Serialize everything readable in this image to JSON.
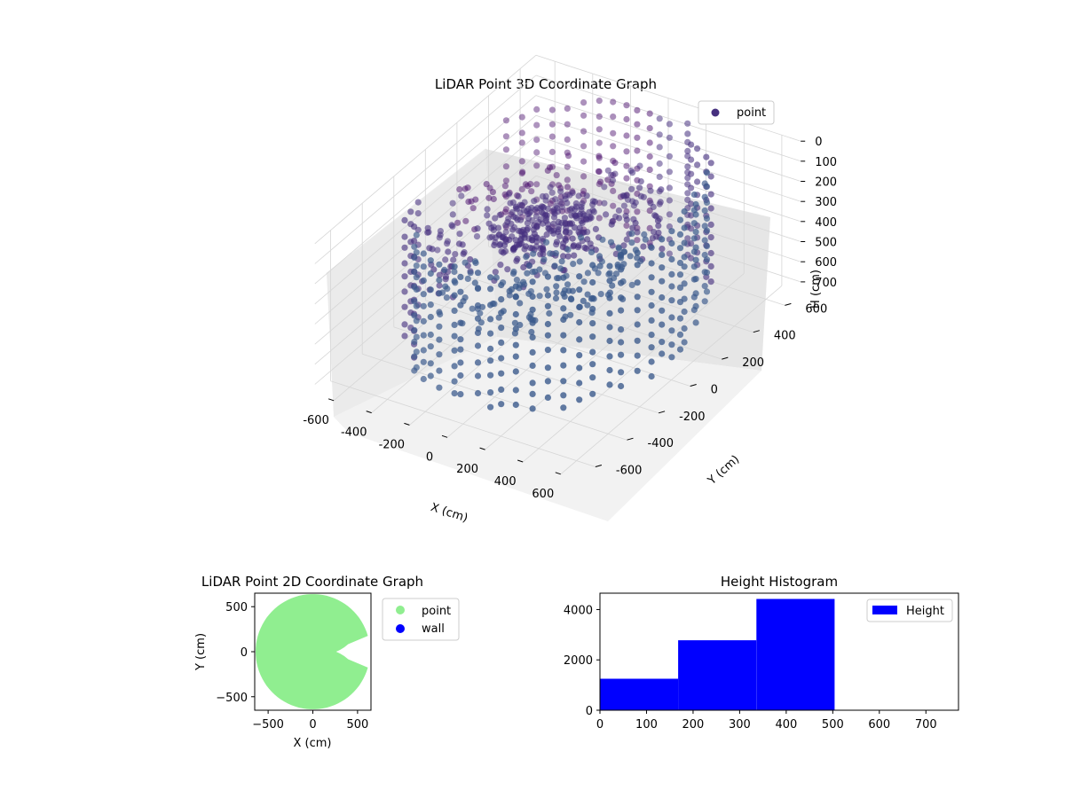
{
  "chart_data": [
    {
      "type": "scatter",
      "subtype": "scatter3d",
      "title": "LiDAR Point 3D Coordinate Graph",
      "xlabel": "X (cm)",
      "ylabel": "Y (cm)",
      "zlabel": "H (cm)",
      "xlim": [
        -700,
        700
      ],
      "ylim": [
        -700,
        700
      ],
      "zlim": [
        0,
        750
      ],
      "z_inverted": true,
      "xticks": [
        -600,
        -400,
        -200,
        0,
        200,
        400,
        600
      ],
      "yticks": [
        -600,
        -400,
        -200,
        0,
        200,
        400,
        600
      ],
      "zticks": [
        0,
        100,
        200,
        300,
        400,
        500,
        600,
        700
      ],
      "grid": true,
      "legend": {
        "position": "top-right",
        "entries": [
          "point"
        ]
      },
      "series": [
        {
          "name": "point",
          "color": "#46307f",
          "color_far": "#470b6b",
          "color_near": "#3b5a8c",
          "distribution": "ring of radius ~620 (heights 0-650) plus scattered interior points (heights 150-350), opening toward +X"
        }
      ]
    },
    {
      "type": "scatter",
      "title": "LiDAR Point 2D Coordinate Graph",
      "xlabel": "X (cm)",
      "ylabel": "Y (cm)",
      "xlim": [
        -650,
        650
      ],
      "ylim": [
        -650,
        650
      ],
      "xticks": [
        -500,
        0,
        500
      ],
      "yticks": [
        -500,
        0,
        500
      ],
      "legend": {
        "position": "outside-right",
        "entries": [
          "point",
          "wall"
        ]
      },
      "series": [
        {
          "name": "point",
          "color": "#90ee90",
          "region": "disc of radius ~640 with a notch at +X near y=0"
        },
        {
          "name": "wall",
          "color": "#0000ff",
          "values": []
        }
      ]
    },
    {
      "type": "bar",
      "subtype": "histogram",
      "title": "Height Histogram",
      "xlabel": "",
      "ylabel": "",
      "bins": [
        [
          0,
          168
        ],
        [
          168,
          336
        ],
        [
          336,
          504
        ]
      ],
      "values": [
        1250,
        2780,
        4420
      ],
      "xlim": [
        0,
        770
      ],
      "ylim": [
        0,
        4650
      ],
      "xticks": [
        0,
        100,
        200,
        300,
        400,
        500,
        600,
        700
      ],
      "yticks": [
        0,
        2000,
        4000
      ],
      "color": "#0000ff",
      "legend": {
        "position": "top-right",
        "entries": [
          "Height"
        ]
      },
      "series": [
        {
          "name": "Height",
          "values": [
            1250,
            2780,
            4420
          ]
        }
      ]
    }
  ]
}
